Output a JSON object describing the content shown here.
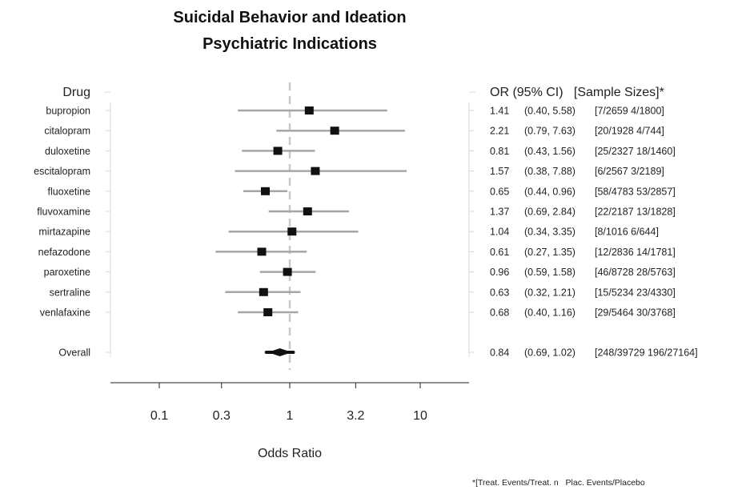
{
  "chart_data": {
    "type": "forest",
    "title": [
      "Suicidal Behavior and Ideation",
      "Psychiatric Indications"
    ],
    "left_header": "Drug",
    "right_header": "OR (95% CI)   [Sample Sizes]*",
    "xlabel": "Odds Ratio",
    "x_scale": "log",
    "reference_line": 1,
    "x_ticks": [
      0.1,
      0.3,
      1,
      3.2,
      10
    ],
    "x_tick_labels": [
      "0.1",
      "0.3",
      "1",
      "3.2",
      "10"
    ],
    "rows": [
      {
        "drug": "bupropion",
        "or": 1.41,
        "lower": 0.4,
        "upper": 5.58,
        "or_text": "1.41",
        "ci_text": "(0.40, 5.58)",
        "sizes": "[7/2659 4/1800]"
      },
      {
        "drug": "citalopram",
        "or": 2.21,
        "lower": 0.79,
        "upper": 7.63,
        "or_text": "2.21",
        "ci_text": "(0.79, 7.63)",
        "sizes": "[20/1928 4/744]"
      },
      {
        "drug": "duloxetine",
        "or": 0.81,
        "lower": 0.43,
        "upper": 1.56,
        "or_text": "0.81",
        "ci_text": "(0.43, 1.56)",
        "sizes": "[25/2327 18/1460]"
      },
      {
        "drug": "escitalopram",
        "or": 1.57,
        "lower": 0.38,
        "upper": 7.88,
        "or_text": "1.57",
        "ci_text": "(0.38, 7.88)",
        "sizes": "[6/2567 3/2189]"
      },
      {
        "drug": "fluoxetine",
        "or": 0.65,
        "lower": 0.44,
        "upper": 0.96,
        "or_text": "0.65",
        "ci_text": "(0.44, 0.96)",
        "sizes": "[58/4783 53/2857]"
      },
      {
        "drug": "fluvoxamine",
        "or": 1.37,
        "lower": 0.69,
        "upper": 2.84,
        "or_text": "1.37",
        "ci_text": "(0.69, 2.84)",
        "sizes": "[22/2187 13/1828]"
      },
      {
        "drug": "mirtazapine",
        "or": 1.04,
        "lower": 0.34,
        "upper": 3.35,
        "or_text": "1.04",
        "ci_text": "(0.34, 3.35)",
        "sizes": "[8/1016 6/644]"
      },
      {
        "drug": "nefazodone",
        "or": 0.61,
        "lower": 0.27,
        "upper": 1.35,
        "or_text": "0.61",
        "ci_text": "(0.27, 1.35)",
        "sizes": "[12/2836 14/1781]"
      },
      {
        "drug": "paroxetine",
        "or": 0.96,
        "lower": 0.59,
        "upper": 1.58,
        "or_text": "0.96",
        "ci_text": "(0.59, 1.58)",
        "sizes": "[46/8728 28/5763]"
      },
      {
        "drug": "sertraline",
        "or": 0.63,
        "lower": 0.32,
        "upper": 1.21,
        "or_text": "0.63",
        "ci_text": "(0.32, 1.21)",
        "sizes": "[15/5234 23/4330]"
      },
      {
        "drug": "venlafaxine",
        "or": 0.68,
        "lower": 0.4,
        "upper": 1.16,
        "or_text": "0.68",
        "ci_text": "(0.40, 1.16)",
        "sizes": "[29/5464 30/3768]"
      }
    ],
    "overall": {
      "drug": "Overall",
      "or": 0.84,
      "lower": 0.69,
      "upper": 1.02,
      "or_text": "0.84",
      "ci_text": "(0.69, 1.02)",
      "sizes": "[248/39729 196/27164]"
    },
    "footnote": "*[Treat. Events/Treat. n   Plac. Events/Placebo",
    "colors": {
      "ci_line": "#a6a6a6",
      "point": "#111111",
      "reference": "#c8c8c8",
      "bracket": "#d9d9d9",
      "axis": "#222222"
    }
  }
}
